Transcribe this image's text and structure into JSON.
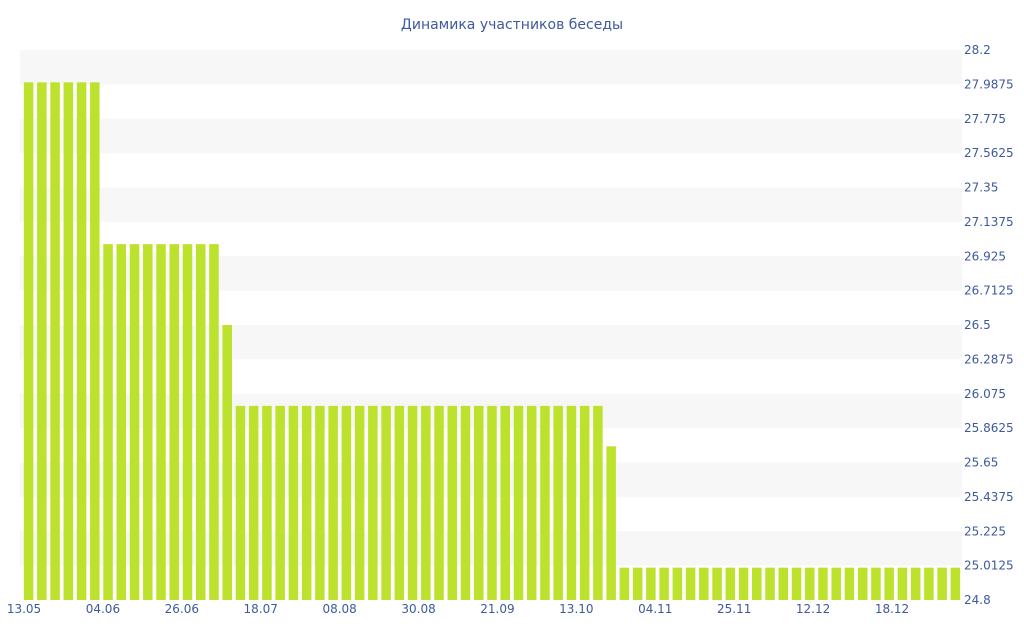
{
  "chart_data": {
    "type": "bar",
    "title": "Динамика участников беседы",
    "xlabel": "",
    "ylabel": "",
    "y_axis_position": "right",
    "ylim": [
      24.8,
      28.2
    ],
    "yticks": [
      "28.2",
      "27.9875",
      "27.775",
      "27.5625",
      "27.35",
      "27.1375",
      "26.925",
      "26.7125",
      "26.5",
      "26.2875",
      "26.075",
      "25.8625",
      "25.65",
      "25.4375",
      "25.225",
      "25.0125",
      "24.8"
    ],
    "xticks": [
      "13.05",
      "04.06",
      "26.06",
      "18.07",
      "08.08",
      "30.08",
      "21.09",
      "13.10",
      "04.11",
      "25.11",
      "12.12",
      "18.12"
    ],
    "grid": "alternating horizontal bands",
    "legend": "none",
    "bar_color": "#bde22e",
    "values": [
      28,
      28,
      28,
      28,
      28,
      28,
      27,
      27,
      27,
      27,
      27,
      27,
      27,
      27,
      27,
      26.5,
      26,
      26,
      26,
      26,
      26,
      26,
      26,
      26,
      26,
      26,
      26,
      26,
      26,
      26,
      26,
      26,
      26,
      26,
      26,
      26,
      26,
      26,
      26,
      26,
      26,
      26,
      26,
      26,
      25.75,
      25,
      25,
      25,
      25,
      25,
      25,
      25,
      25,
      25,
      25,
      25,
      25,
      25,
      25,
      25,
      25,
      25,
      25,
      25,
      25,
      25,
      25,
      25,
      25,
      25,
      25
    ]
  }
}
